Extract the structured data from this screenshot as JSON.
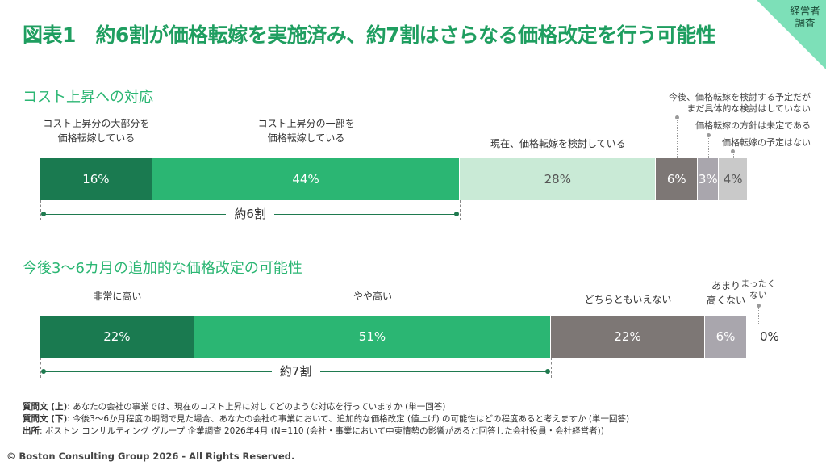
{
  "title": "図表1　約6割が価格転嫁を実施済み、約7割はさらなる価格改定を行う可能性",
  "corner_tag": [
    "経営者",
    "調査"
  ],
  "chart_data": [
    {
      "type": "bar",
      "title": "コスト上昇への対応",
      "categories": [
        "コスト上昇分の大部分を価格転嫁している",
        "コスト上昇分の一部を価格転嫁している",
        "現在、価格転嫁を検討している",
        "今後、価格転嫁を検討する予定だがまだ具体的な検討はしていない",
        "価格転嫁の方針は未定である",
        "価格転嫁の予定はない"
      ],
      "label_lines": [
        [
          "コスト上昇分の大部分を",
          "価格転嫁している"
        ],
        [
          "コスト上昇分の一部を",
          "価格転嫁している"
        ],
        [
          "現在、価格転嫁を検討している"
        ],
        [
          "今後、価格転嫁を検討する予定だが",
          "まだ具体的な検討はしていない"
        ],
        [
          "価格転嫁の方針は未定である"
        ],
        [
          "価格転嫁の予定はない"
        ]
      ],
      "values": [
        16,
        44,
        28,
        6,
        3,
        4
      ],
      "value_labels": [
        "16%",
        "44%",
        "28%",
        "6%",
        "3%",
        "4%"
      ],
      "colors": [
        "#1a7a50",
        "#2bb673",
        "#c9ead6",
        "#7d7775",
        "#a9a6ad",
        "#c9c9c9"
      ],
      "text_colors": [
        "#ffffff",
        "#ffffff",
        "#555555",
        "#ffffff",
        "#ffffff",
        "#555555"
      ],
      "bracket_label": "約6割",
      "bracket_span": [
        0,
        1
      ]
    },
    {
      "type": "bar",
      "title": "今後3～6カ月の追加的な価格改定の可能性",
      "categories": [
        "非常に高い",
        "やや高い",
        "どちらともいえない",
        "あまり高くない",
        "まったくない"
      ],
      "label_lines": [
        [
          "非常に高い"
        ],
        [
          "やや高い"
        ],
        [
          "どちらともいえない"
        ],
        [
          "あまり",
          "高くない"
        ],
        [
          "まったく",
          "ない"
        ]
      ],
      "values": [
        22,
        51,
        22,
        6,
        0
      ],
      "value_labels": [
        "22%",
        "51%",
        "22%",
        "6%",
        "0%"
      ],
      "colors": [
        "#1a7a50",
        "#2bb673",
        "#7d7775",
        "#a9a6ad",
        "#c9c9c9"
      ],
      "text_colors": [
        "#ffffff",
        "#ffffff",
        "#ffffff",
        "#ffffff",
        "#333333"
      ],
      "bracket_label": "約7割",
      "bracket_span": [
        0,
        1
      ]
    }
  ],
  "notes": [
    {
      "label": "質問文 (上)",
      "text": ": あなたの会社の事業では、現在のコスト上昇に対してどのような対応を行っていますか (単一回答)"
    },
    {
      "label": "質問文 (下)",
      "text": ": 今後3～6か月程度の期間で見た場合、あなたの会社の事業において、追加的な価格改定 (値上げ) の可能性はどの程度あると考えますか (単一回答)"
    },
    {
      "label": "出所",
      "text": ": ボストン コンサルティング グループ 企業調査 2026年4月 (N=110 (会社・事業において中東情勢の影響があると回答した会社役員・会社経営者))"
    }
  ],
  "copyright": "© Boston Consulting Group 2026 - All Rights Reserved."
}
